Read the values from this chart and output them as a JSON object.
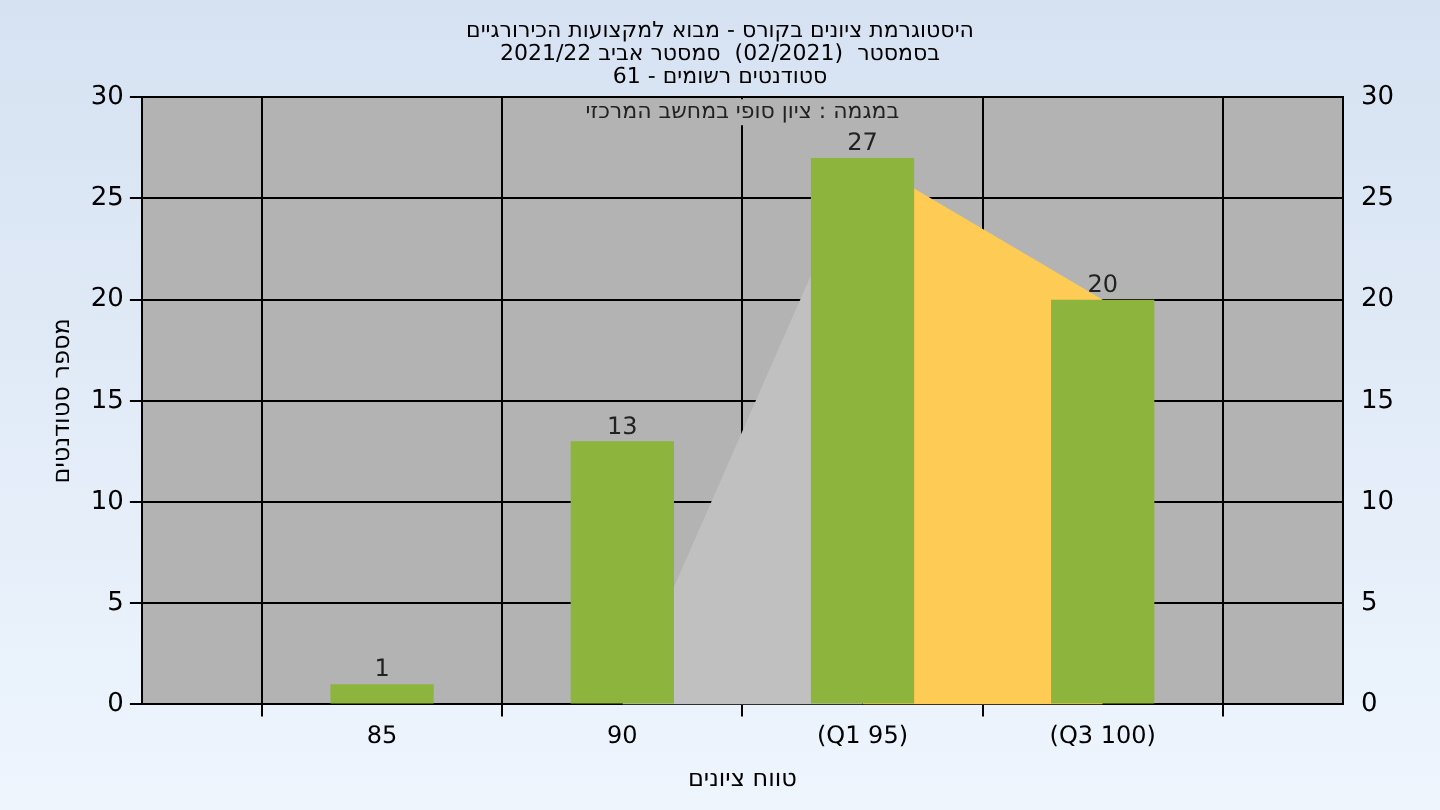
{
  "chart_data": {
    "type": "bar",
    "title": [
      "היסטוגרמת ציונים בקורס - מבוא למקצועות הכירורגיים",
      "בסמסטר  (02/2021)  סמסטר אביב 2021/22",
      "סטודנטים רשומים - 61"
    ],
    "xlabel": "טווח ציונים",
    "ylabel": "מספר סטודנטים",
    "annotations": [
      "במגמה : ציון סופי במחשב המרכזי"
    ],
    "categories": [
      null,
      "85",
      "90",
      "(Q1 95)",
      "(Q3 100)",
      null
    ],
    "series": [
      {
        "type": "area",
        "color": "#c0c0c0",
        "values": [
          null,
          null,
          0,
          27,
          null,
          null
        ]
      },
      {
        "type": "area",
        "color": "#fecb54",
        "values": [
          null,
          null,
          null,
          27,
          20,
          null
        ]
      },
      {
        "color": "#8db43c",
        "values": [
          null,
          1,
          13,
          27,
          20,
          null
        ],
        "value_labels": [
          null,
          "1",
          "13",
          "27",
          "20",
          null
        ]
      }
    ],
    "ylim": [
      0,
      30
    ],
    "yticks": [
      0,
      5,
      10,
      15,
      20,
      25,
      30
    ],
    "y2lim": [
      0,
      30
    ],
    "y2ticks": [
      0,
      5,
      10,
      15,
      20,
      25,
      30
    ],
    "grid": true,
    "legend": false
  }
}
